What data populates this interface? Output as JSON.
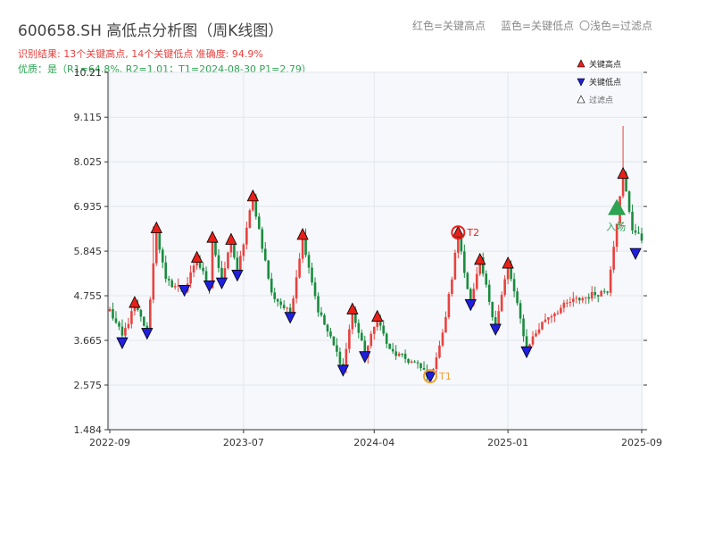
{
  "header": {
    "title": "600658.SH 高低点分析图（周K线图）",
    "subtitle_result": "识别结果: 13个关键高点, 14个关键低点  准确度: 94.9%",
    "subtitle_quality": "优质：是（R1=64.8%, R2=1.01；T1=2024-08-30 P1=2.79）",
    "legend_text": {
      "red": "红色=关键高点",
      "blue": "蓝色=关键低点",
      "light": "〇浅色=过滤点"
    }
  },
  "colors": {
    "up": "#e8423f",
    "down": "#1a8c3e",
    "high_marker": "#e8201a",
    "low_marker": "#1f1fdd",
    "t_marker": "#f0a030",
    "entry": "#2da353",
    "plot_bg": "#f6f8fb",
    "grid": "#e2e6ec"
  },
  "chart_data": {
    "type": "candlestick",
    "title": "600658.SH 高低点分析图（周K线图）",
    "y_ticks": [
      1.484,
      2.575,
      3.665,
      4.755,
      5.845,
      6.935,
      8.025,
      9.115,
      10.21
    ],
    "ylim": [
      1.484,
      10.21
    ],
    "x_ticks": [
      {
        "label": "2022-09",
        "week": 0
      },
      {
        "label": "2023-07",
        "week": 43
      },
      {
        "label": "2024-04",
        "week": 85
      },
      {
        "label": "2025-01",
        "week": 128
      },
      {
        "label": "2025-09",
        "week": 171
      }
    ],
    "x_range": [
      0,
      171
    ],
    "x_unit": "weeks from 2022-09",
    "legend": [
      "关键高点",
      "关键低点",
      "过滤点"
    ],
    "anchors": [
      [
        0,
        4.4
      ],
      [
        4,
        3.75
      ],
      [
        8,
        4.5
      ],
      [
        12,
        3.9
      ],
      [
        15,
        6.35
      ],
      [
        18,
        5.1
      ],
      [
        24,
        4.9
      ],
      [
        28,
        5.6
      ],
      [
        32,
        5.0
      ],
      [
        33,
        6.1
      ],
      [
        36,
        5.1
      ],
      [
        39,
        6.1
      ],
      [
        41,
        5.3
      ],
      [
        46,
        7.15
      ],
      [
        52,
        4.8
      ],
      [
        58,
        4.3
      ],
      [
        62,
        6.2
      ],
      [
        67,
        4.4
      ],
      [
        75,
        3.0
      ],
      [
        78,
        4.4
      ],
      [
        82,
        3.3
      ],
      [
        86,
        4.2
      ],
      [
        90,
        3.4
      ],
      [
        98,
        3.1
      ],
      [
        103,
        2.79
      ],
      [
        107,
        3.8
      ],
      [
        110,
        5.2
      ],
      [
        112,
        6.3
      ],
      [
        116,
        4.5
      ],
      [
        119,
        5.6
      ],
      [
        124,
        4.0
      ],
      [
        128,
        5.5
      ],
      [
        134,
        3.5
      ],
      [
        140,
        4.2
      ],
      [
        148,
        4.6
      ],
      [
        160,
        4.9
      ],
      [
        165,
        7.7
      ],
      [
        168,
        6.4
      ],
      [
        171,
        6.1
      ]
    ],
    "key_highs": [
      {
        "week": 8,
        "price": 4.58
      },
      {
        "week": 15,
        "price": 6.4
      },
      {
        "week": 28,
        "price": 5.68
      },
      {
        "week": 33,
        "price": 6.17
      },
      {
        "week": 39,
        "price": 6.12
      },
      {
        "week": 46,
        "price": 7.18
      },
      {
        "week": 62,
        "price": 6.24
      },
      {
        "week": 78,
        "price": 4.42
      },
      {
        "week": 86,
        "price": 4.24
      },
      {
        "week": 112,
        "price": 6.3
      },
      {
        "week": 119,
        "price": 5.63
      },
      {
        "week": 128,
        "price": 5.54
      },
      {
        "week": 165,
        "price": 7.73
      }
    ],
    "key_lows": [
      {
        "week": 4,
        "price": 3.62
      },
      {
        "week": 12,
        "price": 3.85
      },
      {
        "week": 24,
        "price": 4.9
      },
      {
        "week": 32,
        "price": 5.01
      },
      {
        "week": 36,
        "price": 5.08
      },
      {
        "week": 41,
        "price": 5.27
      },
      {
        "week": 58,
        "price": 4.24
      },
      {
        "week": 75,
        "price": 2.95
      },
      {
        "week": 82,
        "price": 3.28
      },
      {
        "week": 103,
        "price": 2.79
      },
      {
        "week": 116,
        "price": 4.55
      },
      {
        "week": 124,
        "price": 3.95
      },
      {
        "week": 134,
        "price": 3.4
      },
      {
        "week": 169,
        "price": 5.8
      }
    ],
    "t_points": [
      {
        "label": "T1",
        "week": 103,
        "price": 2.79
      },
      {
        "label": "T2",
        "week": 112,
        "price": 6.3
      }
    ],
    "entry_point": {
      "label": "入场",
      "week": 163,
      "price": 6.9
    },
    "filtered_points": []
  }
}
